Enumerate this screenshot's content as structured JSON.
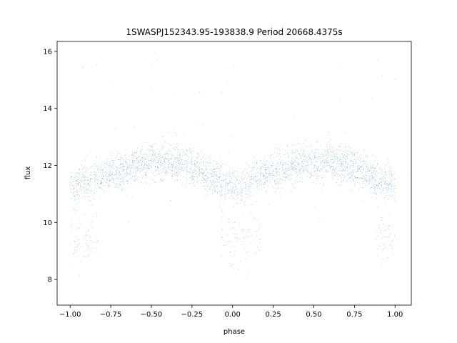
{
  "chart_data": {
    "type": "scatter",
    "title": "1SWASPJ152343.95-193838.9 Period 20668.4375s",
    "xlabel": "phase",
    "ylabel": "flux",
    "xlim": [
      -1.08,
      1.1
    ],
    "ylim": [
      7.1,
      16.35
    ],
    "xticks": [
      -1.0,
      -0.75,
      -0.5,
      -0.25,
      0.0,
      0.25,
      0.5,
      0.75,
      1.0
    ],
    "xtick_labels": [
      "−1.00",
      "−0.75",
      "−0.50",
      "−0.25",
      "0.00",
      "0.25",
      "0.50",
      "0.75",
      "1.00"
    ],
    "yticks": [
      8,
      10,
      12,
      14,
      16
    ],
    "ytick_labels": [
      "8",
      "10",
      "12",
      "14",
      "16"
    ],
    "grid": false,
    "legend": "none",
    "marker_color": "#1f77b4",
    "series": [
      {
        "description_curve": {
          "x": [
            -1.0,
            -0.9,
            -0.8,
            -0.7,
            -0.6,
            -0.5,
            -0.4,
            -0.3,
            -0.2,
            -0.1,
            0.0,
            0.1,
            0.2,
            0.3,
            0.4,
            0.5,
            0.6,
            0.7,
            0.8,
            0.9,
            1.0
          ],
          "y": [
            11.3,
            11.4,
            11.6,
            11.8,
            12.0,
            12.1,
            12.1,
            12.0,
            11.8,
            11.5,
            11.2,
            11.4,
            11.7,
            11.9,
            12.0,
            12.1,
            12.1,
            12.0,
            11.8,
            11.5,
            11.3
          ]
        },
        "dip_centers": [
          -0.95,
          0.05,
          1.0
        ],
        "dip_level": 9.5,
        "n_points": 24000
      }
    ]
  }
}
